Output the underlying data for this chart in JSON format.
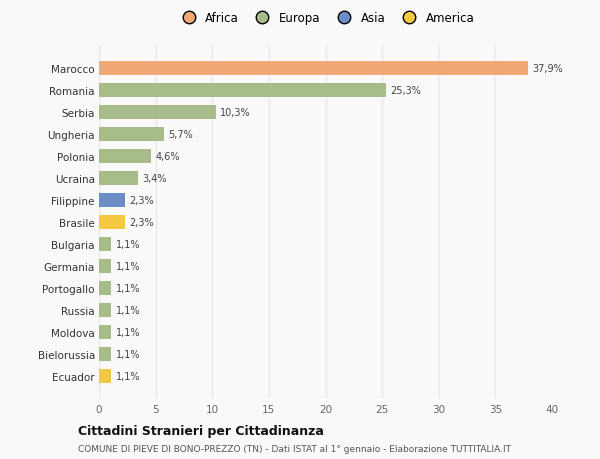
{
  "countries": [
    "Marocco",
    "Romania",
    "Serbia",
    "Ungheria",
    "Polonia",
    "Ucraina",
    "Filippine",
    "Brasile",
    "Bulgaria",
    "Germania",
    "Portogallo",
    "Russia",
    "Moldova",
    "Bielorussia",
    "Ecuador"
  ],
  "values": [
    37.9,
    25.3,
    10.3,
    5.7,
    4.6,
    3.4,
    2.3,
    2.3,
    1.1,
    1.1,
    1.1,
    1.1,
    1.1,
    1.1,
    1.1
  ],
  "labels": [
    "37,9%",
    "25,3%",
    "10,3%",
    "5,7%",
    "4,6%",
    "3,4%",
    "2,3%",
    "2,3%",
    "1,1%",
    "1,1%",
    "1,1%",
    "1,1%",
    "1,1%",
    "1,1%",
    "1,1%"
  ],
  "colors": [
    "#f0a875",
    "#a8bc8a",
    "#a8bc8a",
    "#a8bc8a",
    "#a8bc8a",
    "#a8bc8a",
    "#6b8ec7",
    "#f5c842",
    "#a8bc8a",
    "#a8bc8a",
    "#a8bc8a",
    "#a8bc8a",
    "#a8bc8a",
    "#a8bc8a",
    "#f5c842"
  ],
  "continent_legend": [
    "Africa",
    "Europa",
    "Asia",
    "America"
  ],
  "continent_colors": [
    "#f0a875",
    "#a8bc8a",
    "#6b8ec7",
    "#f5c842"
  ],
  "xlim": [
    0,
    40
  ],
  "xticks": [
    0,
    5,
    10,
    15,
    20,
    25,
    30,
    35,
    40
  ],
  "title": "Cittadini Stranieri per Cittadinanza",
  "subtitle": "COMUNE DI PIEVE DI BONO-PREZZO (TN) - Dati ISTAT al 1° gennaio - Elaborazione TUTTITALIA.IT",
  "bg_color": "#f9f9f9",
  "grid_color": "#e8e8e8",
  "bar_height": 0.65
}
